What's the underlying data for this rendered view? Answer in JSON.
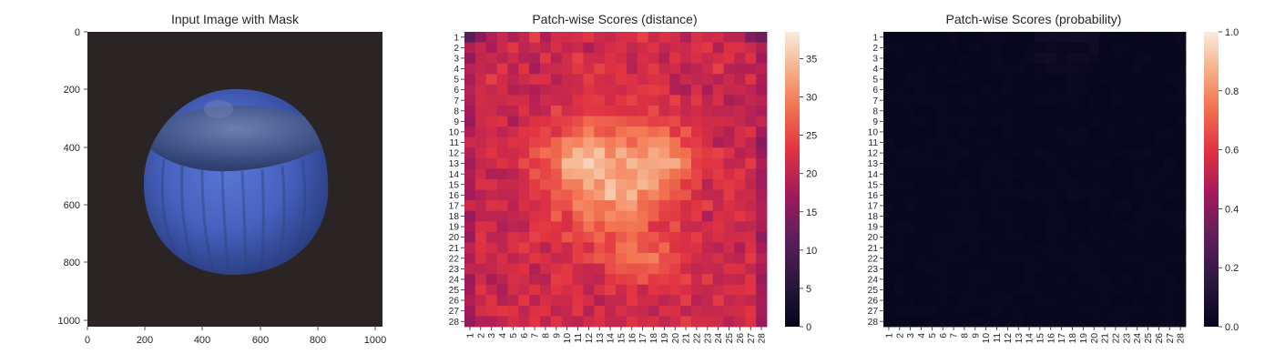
{
  "figure": {
    "panel1_title": "Input Image with Mask",
    "panel2_title": "Patch-wise Scores (distance)",
    "panel3_title": "Patch-wise Scores (probability)"
  },
  "chart_data": [
    {
      "type": "image",
      "title": "Input Image with Mask",
      "xlim": [
        0,
        1024
      ],
      "ylim": [
        1024,
        0
      ],
      "xticks": [
        0,
        200,
        400,
        600,
        800,
        1000
      ],
      "yticks": [
        0,
        200,
        400,
        600,
        800,
        1000
      ],
      "image_content": "blue-tinted hazelnut on dark background",
      "colors": {
        "background": "#2a2425",
        "object": "#4a62b8",
        "object_top": "#5a6fa8"
      }
    },
    {
      "type": "heatmap",
      "title": "Patch-wise Scores (distance)",
      "x_labels": [
        "1",
        "2",
        "3",
        "4",
        "5",
        "6",
        "7",
        "8",
        "9",
        "10",
        "11",
        "12",
        "13",
        "14",
        "15",
        "16",
        "17",
        "18",
        "19",
        "20",
        "21",
        "22",
        "23",
        "24",
        "25",
        "26",
        "27",
        "28"
      ],
      "y_labels": [
        "1",
        "2",
        "3",
        "4",
        "5",
        "6",
        "7",
        "8",
        "9",
        "10",
        "11",
        "12",
        "13",
        "14",
        "15",
        "16",
        "17",
        "18",
        "19",
        "20",
        "21",
        "22",
        "23",
        "24",
        "25",
        "26",
        "27",
        "28"
      ],
      "colorbar": {
        "min": 0,
        "max": 38.5,
        "ticks": [
          0,
          5,
          10,
          15,
          20,
          25,
          30,
          35
        ],
        "colormap": "rocket"
      },
      "values_description": "edges ~18-22, center blob up to ~37"
    },
    {
      "type": "heatmap",
      "title": "Patch-wise Scores (probability)",
      "x_labels": [
        "1",
        "2",
        "3",
        "4",
        "5",
        "6",
        "7",
        "8",
        "9",
        "10",
        "11",
        "12",
        "13",
        "14",
        "15",
        "16",
        "17",
        "18",
        "19",
        "20",
        "21",
        "22",
        "23",
        "24",
        "25",
        "26",
        "27",
        "28"
      ],
      "y_labels": [
        "1",
        "2",
        "3",
        "4",
        "5",
        "6",
        "7",
        "8",
        "9",
        "10",
        "11",
        "12",
        "13",
        "14",
        "15",
        "16",
        "17",
        "18",
        "19",
        "20",
        "21",
        "22",
        "23",
        "24",
        "25",
        "26",
        "27",
        "28"
      ],
      "colorbar": {
        "min": 0.0,
        "max": 1.0,
        "ticks": [
          "0.0",
          "0.2",
          "0.4",
          "0.6",
          "0.8",
          "1.0"
        ],
        "colormap": "rocket"
      },
      "values_description": "all values near 0.0"
    }
  ]
}
